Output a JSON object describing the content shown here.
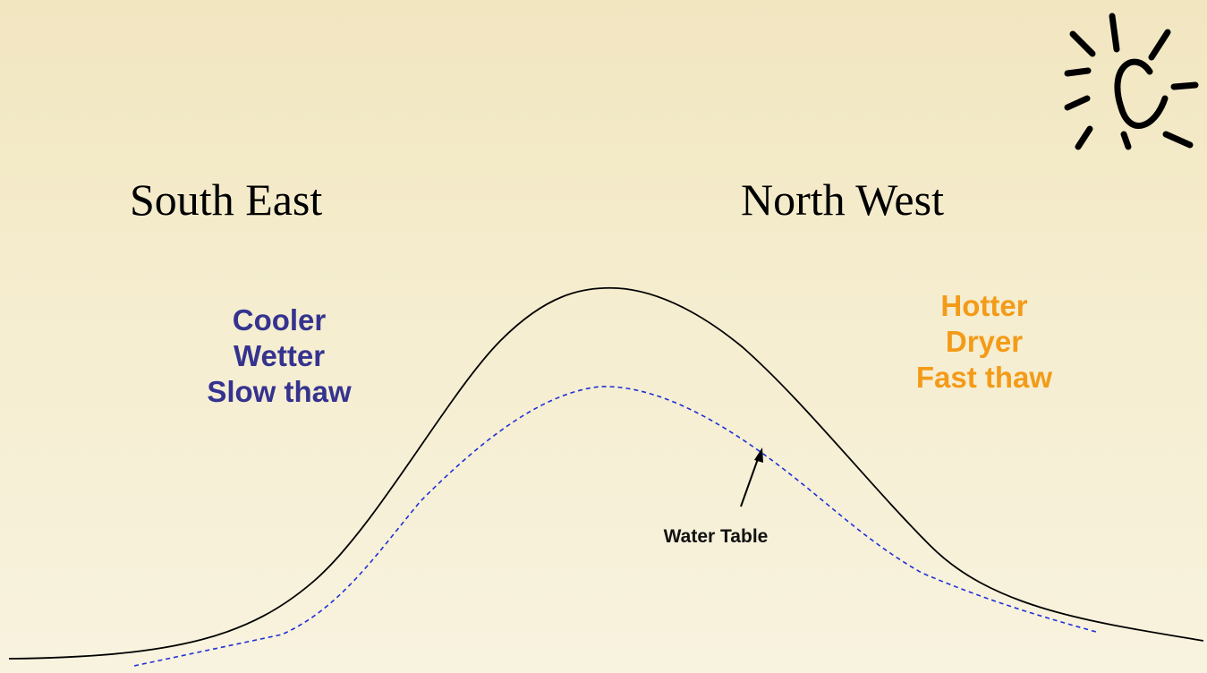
{
  "regions": {
    "left": {
      "title": "South East",
      "traits": [
        "Cooler",
        "Wetter",
        "Slow thaw"
      ],
      "color": "#35338f"
    },
    "right": {
      "title": "North West",
      "traits": [
        "Hotter",
        "Dryer",
        "Fast thaw"
      ],
      "color": "#f39b18"
    }
  },
  "annotation": {
    "water_table_label": "Water Table"
  },
  "colors": {
    "hill_outline": "#000000",
    "water_table_line": "#1f2fd6",
    "background": "#f3ead0"
  },
  "icons": {
    "sun": "sun-icon"
  }
}
